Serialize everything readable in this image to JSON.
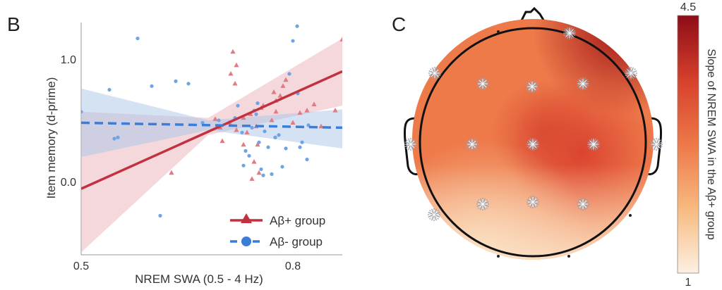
{
  "chart_data": [
    {
      "panel": "B",
      "type": "scatter",
      "xlabel": "NREM SWA (0.5 - 4 Hz)",
      "ylabel": "Item memory (d-prime)",
      "xlim": [
        0.5,
        0.87
      ],
      "ylim": [
        -0.6,
        1.3
      ],
      "xticks": [
        0.5,
        0.8
      ],
      "xtick_labels": [
        "0.5",
        "0.8"
      ],
      "yticks": [
        1.0,
        0.0
      ],
      "ytick_labels": [
        "1.0",
        "0.0"
      ],
      "legend_position": "bottom-right",
      "series": [
        {
          "name": "Aβ+ group",
          "color": "#c2313f",
          "marker": "triangle",
          "fit_line": {
            "style": "solid",
            "x": [
              0.5,
              0.87
            ],
            "y": [
              -0.06,
              0.9
            ]
          },
          "ci_band": {
            "x": [
              0.5,
              0.68,
              0.87
            ],
            "upper": [
              0.57,
              0.52,
              1.17
            ],
            "lower": [
              -0.58,
              0.38,
              0.62
            ]
          },
          "points": [
            [
              0.628,
              0.07
            ],
            [
              0.69,
              0.51
            ],
            [
              0.697,
              0.44
            ],
            [
              0.71,
              0.48
            ],
            [
              0.7,
              0.33
            ],
            [
              0.72,
              0.42
            ],
            [
              0.73,
              0.3
            ],
            [
              0.73,
              0.52
            ],
            [
              0.748,
              0.45
            ],
            [
              0.755,
              0.6
            ],
            [
              0.77,
              0.5
            ],
            [
              0.773,
              0.73
            ],
            [
              0.776,
              0.66
            ],
            [
              0.782,
              0.7
            ],
            [
              0.786,
              0.78
            ],
            [
              0.79,
              0.83
            ],
            [
              0.758,
              0.62
            ],
            [
              0.776,
              0.57
            ],
            [
              0.8,
              0.48
            ],
            [
              0.81,
              0.56
            ],
            [
              0.82,
              0.58
            ],
            [
              0.83,
              0.63
            ],
            [
              0.84,
              0.45
            ],
            [
              0.86,
              0.58
            ],
            [
              0.75,
              0.3
            ],
            [
              0.752,
              0.07
            ],
            [
              0.742,
              0.02
            ],
            [
              0.712,
              0.88
            ],
            [
              0.718,
              0.8
            ],
            [
              0.715,
              1.06
            ],
            [
              0.72,
              0.95
            ],
            [
              0.74,
              0.55
            ],
            [
              0.735,
              0.4
            ],
            [
              0.87,
              1.16
            ],
            [
              0.745,
              0.16
            ]
          ]
        },
        {
          "name": "Aβ- group",
          "color": "#3b7dd8",
          "marker": "circle",
          "fit_line": {
            "style": "dashed",
            "x": [
              0.5,
              0.87
            ],
            "y": [
              0.48,
              0.44
            ]
          },
          "ci_band": {
            "x": [
              0.5,
              0.68,
              0.87
            ],
            "upper": [
              0.76,
              0.5,
              0.59
            ],
            "lower": [
              0.2,
              0.42,
              0.27
            ]
          },
          "points": [
            [
              0.5,
              0.57
            ],
            [
              0.54,
              0.75
            ],
            [
              0.547,
              0.35
            ],
            [
              0.552,
              0.36
            ],
            [
              0.58,
              1.17
            ],
            [
              0.6,
              0.78
            ],
            [
              0.612,
              -0.28
            ],
            [
              0.634,
              0.82
            ],
            [
              0.652,
              0.8
            ],
            [
              0.672,
              0.48
            ],
            [
              0.695,
              0.5
            ],
            [
              0.718,
              0.52
            ],
            [
              0.728,
              0.4
            ],
            [
              0.73,
              0.13
            ],
            [
              0.733,
              0.25
            ],
            [
              0.738,
              0.21
            ],
            [
              0.742,
              0.44
            ],
            [
              0.745,
              0.58
            ],
            [
              0.75,
              0.64
            ],
            [
              0.752,
              0.32
            ],
            [
              0.755,
              0.1
            ],
            [
              0.758,
              0.05
            ],
            [
              0.76,
              0.41
            ],
            [
              0.765,
              0.28
            ],
            [
              0.77,
              0.06
            ],
            [
              0.775,
              0.36
            ],
            [
              0.78,
              0.38
            ],
            [
              0.785,
              0.12
            ],
            [
              0.79,
              0.27
            ],
            [
              0.795,
              0.88
            ],
            [
              0.8,
              1.15
            ],
            [
              0.806,
              1.27
            ],
            [
              0.807,
              0.72
            ],
            [
              0.81,
              0.28
            ],
            [
              0.813,
              0.32
            ],
            [
              0.82,
              0.18
            ],
            [
              0.822,
              0.46
            ],
            [
              0.748,
              0.55
            ],
            [
              0.722,
              0.62
            ]
          ]
        }
      ],
      "legend": [
        {
          "label": "Aβ+ group",
          "marker": "triangle",
          "line": "solid"
        },
        {
          "label": "Aβ- group",
          "marker": "circle",
          "line": "dashed"
        }
      ]
    },
    {
      "panel": "C",
      "type": "heatmap",
      "description_kind": "scalp topography",
      "colorbar": {
        "label": "Slope of NREM SWA in the Aβ+ group",
        "min_label": "1",
        "max_label": "4.5",
        "min": 1,
        "max": 4.5,
        "colors": [
          "#fdf0e2",
          "#f7ba80",
          "#ee7848",
          "#d6402c",
          "#8e0c17"
        ]
      },
      "electrodes_significant": 14,
      "electrodes_nonsignificant": 6
    }
  ]
}
